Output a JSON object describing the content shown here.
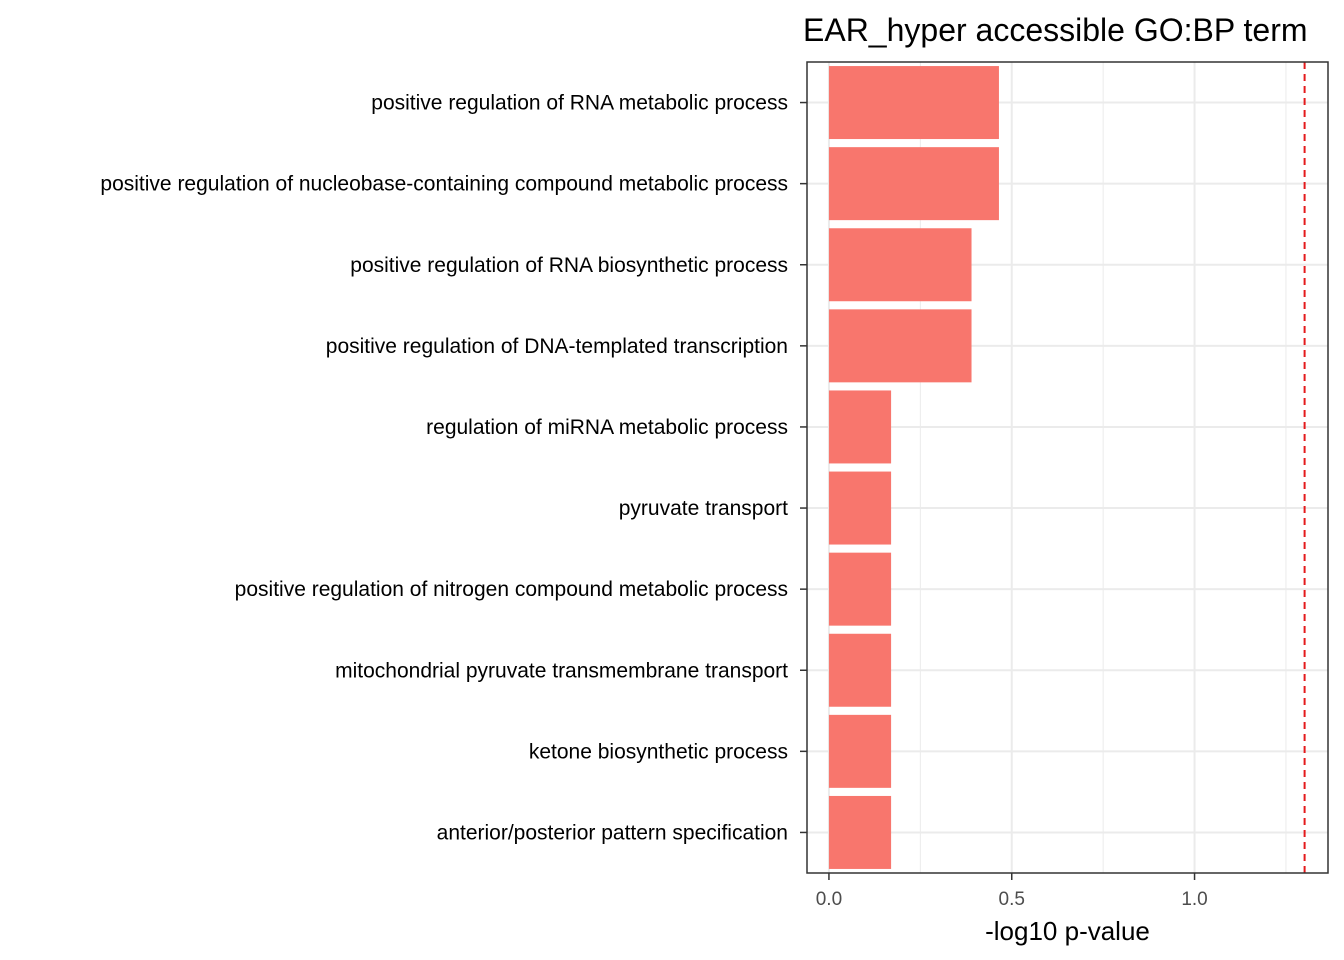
{
  "chart_data": {
    "type": "bar",
    "orientation": "horizontal",
    "title": "EAR_hyper accessible GO:BP term",
    "xlabel": "-log10 p-value",
    "ylabel": "",
    "categories": [
      "positive regulation of RNA metabolic process",
      "positive regulation of nucleobase-containing compound metabolic process",
      "positive regulation of RNA biosynthetic process",
      "positive regulation of DNA-templated transcription",
      "regulation of miRNA metabolic process",
      "pyruvate transport",
      "positive regulation of nitrogen compound metabolic process",
      "mitochondrial pyruvate transmembrane transport",
      "ketone biosynthetic process",
      "anterior/posterior pattern specification"
    ],
    "values": [
      0.465,
      0.465,
      0.39,
      0.39,
      0.17,
      0.17,
      0.17,
      0.17,
      0.17,
      0.17
    ],
    "xlim": [
      -0.06,
      1.365
    ],
    "x_ticks": [
      {
        "value": 0.0,
        "label": "0.0"
      },
      {
        "value": 0.5,
        "label": "0.5"
      },
      {
        "value": 1.0,
        "label": "1.0"
      }
    ],
    "x_minor_ticks": [
      0.25,
      0.75,
      1.25
    ],
    "threshold_line": {
      "value": 1.301,
      "style": "dashed",
      "color": "#e41a1c"
    },
    "grid": true,
    "legend": "none",
    "bar_color": "#f8766d",
    "panel_border_color": "#333333",
    "grid_color": "#ebebeb"
  }
}
